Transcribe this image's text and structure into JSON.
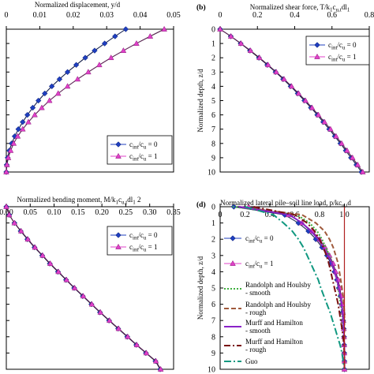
{
  "chart_data": [
    {
      "type": "line",
      "title": "Normalized displacement, y/d",
      "xlim": [
        0,
        0.05
      ],
      "xticks": [
        "0",
        "0.01",
        "0.02",
        "0.03",
        "0.04",
        "0.05"
      ],
      "ylim": [
        0,
        10
      ],
      "grid": false,
      "legend": "bottom-right",
      "series": [
        {
          "name": "c_int/c_u = 0",
          "color": "#1f3fbf",
          "marker": "diamond",
          "x": [
            0.0357,
            0.0325,
            0.0294,
            0.0264,
            0.0236,
            0.0209,
            0.0183,
            0.0159,
            0.0136,
            0.0115,
            0.0096,
            0.0079,
            0.0063,
            0.0049,
            0.0036,
            0.0025,
            0.0016,
            0.0009,
            0.0004,
            0.0001,
            0.0
          ],
          "y": [
            0,
            0.5,
            1,
            1.5,
            2,
            2.5,
            3,
            3.5,
            4,
            4.5,
            5,
            5.5,
            6,
            6.5,
            7,
            7.5,
            8,
            8.5,
            9,
            9.5,
            10
          ]
        },
        {
          "name": "c_int/c_u = 1",
          "color": "#e040c8",
          "marker": "triangle",
          "x": [
            0.0472,
            0.043,
            0.0389,
            0.035,
            0.0313,
            0.0278,
            0.0245,
            0.0213,
            0.0183,
            0.0155,
            0.0129,
            0.0106,
            0.0085,
            0.0066,
            0.0049,
            0.0034,
            0.0022,
            0.0013,
            0.0006,
            0.0002,
            0.0
          ],
          "y": [
            0,
            0.5,
            1,
            1.5,
            2,
            2.5,
            3,
            3.5,
            4,
            4.5,
            5,
            5.5,
            6,
            6.5,
            7,
            7.5,
            8,
            8.5,
            9,
            9.5,
            10
          ]
        }
      ]
    },
    {
      "panel": "(b)",
      "type": "line",
      "title": "Normalized shear force, T/k1cu,tdl1",
      "xlim": [
        0,
        0.8
      ],
      "xticks": [
        "0",
        "0.2",
        "0.4",
        "0.6",
        "0.8"
      ],
      "ylim": [
        0,
        10
      ],
      "yticks": [
        "0",
        "1",
        "2",
        "3",
        "4",
        "5",
        "6",
        "7",
        "8",
        "9",
        "10"
      ],
      "ylabel": "Normalized depth, z/d",
      "grid": false,
      "legend": "top-right",
      "series": [
        {
          "name": "c_int/c_u = 0",
          "color": "#1f3fbf",
          "marker": "diamond",
          "x": [
            0.0,
            0.057,
            0.11,
            0.16,
            0.208,
            0.253,
            0.297,
            0.338,
            0.378,
            0.416,
            0.452,
            0.487,
            0.521,
            0.553,
            0.585,
            0.615,
            0.645,
            0.674,
            0.702,
            0.731,
            0.758
          ],
          "y": [
            0,
            0.5,
            1,
            1.5,
            2,
            2.5,
            3,
            3.5,
            4,
            4.5,
            5,
            5.5,
            6,
            6.5,
            7,
            7.5,
            8,
            8.5,
            9,
            9.5,
            10
          ]
        },
        {
          "name": "c_int/c_u = 1",
          "color": "#e040c8",
          "marker": "triangle",
          "x": [
            0.0,
            0.058,
            0.112,
            0.163,
            0.211,
            0.257,
            0.301,
            0.343,
            0.383,
            0.421,
            0.458,
            0.493,
            0.527,
            0.56,
            0.592,
            0.622,
            0.652,
            0.681,
            0.71,
            0.738,
            0.765
          ],
          "y": [
            0,
            0.5,
            1,
            1.5,
            2,
            2.5,
            3,
            3.5,
            4,
            4.5,
            5,
            5.5,
            6,
            6.5,
            7,
            7.5,
            8,
            8.5,
            9,
            9.5,
            10
          ]
        }
      ]
    },
    {
      "type": "line",
      "title": "Normalized bending moment, M/k1cu,tdl1 2",
      "xlim": [
        0,
        0.35
      ],
      "xticks": [
        "0.00",
        "0.05",
        "0.10",
        "0.15",
        "0.20",
        "0.25",
        "0.30",
        "0.35"
      ],
      "ylim": [
        0,
        10
      ],
      "grid": false,
      "legend": "top-right",
      "series": [
        {
          "name": "c_int/c_u = 0",
          "color": "#1f3fbf",
          "marker": "diamond",
          "x": [
            0.0,
            0.006,
            0.017,
            0.03,
            0.044,
            0.059,
            0.075,
            0.091,
            0.108,
            0.125,
            0.142,
            0.16,
            0.178,
            0.196,
            0.215,
            0.234,
            0.253,
            0.272,
            0.292,
            0.312,
            0.322
          ],
          "y": [
            0,
            0.5,
            1,
            1.5,
            2,
            2.5,
            3,
            3.5,
            4,
            4.5,
            5,
            5.5,
            6,
            6.5,
            7,
            7.5,
            8,
            8.5,
            9,
            9.5,
            10
          ]
        },
        {
          "name": "c_int/c_u = 1",
          "color": "#e040c8",
          "marker": "triangle",
          "x": [
            0.0,
            0.006,
            0.017,
            0.031,
            0.045,
            0.06,
            0.076,
            0.092,
            0.109,
            0.126,
            0.143,
            0.161,
            0.179,
            0.197,
            0.216,
            0.235,
            0.254,
            0.273,
            0.293,
            0.313,
            0.323
          ],
          "y": [
            0,
            0.5,
            1,
            1.5,
            2,
            2.5,
            3,
            3.5,
            4,
            4.5,
            5,
            5.5,
            6,
            6.5,
            7,
            7.5,
            8,
            8.5,
            9,
            9.5,
            10
          ]
        }
      ]
    },
    {
      "panel": "(d)",
      "type": "line",
      "title": "Normalized lateral pile–soil line load, p/kcu,td",
      "xlim": [
        0,
        1.2
      ],
      "xticks": [
        "0",
        "0.2",
        "0.4",
        "0.6",
        "0.8",
        "1.0"
      ],
      "ylim": [
        0,
        10
      ],
      "yticks": [
        "0",
        "1",
        "2",
        "3",
        "4",
        "5",
        "6",
        "7",
        "8",
        "9",
        "10"
      ],
      "ylabel": "Normalized depth, z/d",
      "grid": false,
      "legend": "top-left",
      "series": [
        {
          "name": "c_int/c_u = 0",
          "color": "#1f3fbf",
          "marker": "diamond",
          "x": [
            0.11,
            0.52,
            0.63,
            0.71,
            0.77,
            0.82,
            0.86,
            0.89,
            0.92,
            0.94,
            0.955,
            0.968,
            0.978,
            0.985,
            0.99,
            0.994,
            0.997,
            0.998,
            0.999,
            1.0,
            1.0
          ],
          "y": [
            0,
            0.5,
            1,
            1.5,
            2,
            2.5,
            3,
            3.5,
            4,
            4.5,
            5,
            5.5,
            6,
            6.5,
            7,
            7.5,
            8,
            8.5,
            9,
            9.5,
            10
          ]
        },
        {
          "name": "c_int/c_u = 1",
          "color": "#e040c8",
          "marker": "triangle",
          "x": [
            0.23,
            0.55,
            0.66,
            0.74,
            0.8,
            0.845,
            0.88,
            0.91,
            0.93,
            0.95,
            0.963,
            0.974,
            0.982,
            0.988,
            0.992,
            0.995,
            0.997,
            0.998,
            0.999,
            1.0,
            1.0
          ],
          "y": [
            0,
            0.5,
            1,
            1.5,
            2,
            2.5,
            3,
            3.5,
            4,
            4.5,
            5,
            5.5,
            6,
            6.5,
            7,
            7.5,
            8,
            8.5,
            9,
            9.5,
            10
          ]
        },
        {
          "name": "Randolph and Houlsby - smooth",
          "color": "#40b040",
          "dash": "2,2",
          "x": [
            0.1,
            0.62,
            0.72,
            0.78,
            0.82,
            0.85,
            0.88,
            0.9,
            0.92,
            0.94,
            0.95,
            0.96,
            0.97,
            0.98,
            0.985,
            0.99,
            0.995,
            0.998,
            1.0,
            1.0,
            1.0
          ],
          "y": [
            0,
            0.5,
            1,
            1.5,
            2,
            2.5,
            3,
            3.5,
            4,
            4.5,
            5,
            5.5,
            6,
            6.5,
            7,
            7.5,
            8,
            8.5,
            9,
            9.5,
            10
          ]
        },
        {
          "name": "Randolph and Houlsby - rough",
          "color": "#a05a3c",
          "dash": "6,3",
          "x": [
            0.15,
            0.66,
            0.77,
            0.84,
            0.88,
            0.91,
            0.93,
            0.95,
            0.96,
            0.97,
            0.98,
            0.99,
            0.995,
            1.0,
            1.0,
            1.0,
            1.0,
            1.0,
            1.0,
            1.0,
            1.0
          ],
          "y": [
            0,
            0.5,
            1,
            1.5,
            2,
            2.5,
            3,
            3.5,
            4,
            4.5,
            5,
            5.5,
            6,
            6.5,
            7,
            7.5,
            8,
            8.5,
            9,
            9.5,
            10
          ]
        },
        {
          "name": "Murff and Hamilton - smooth",
          "color": "#8a22c8",
          "dash": "",
          "x": [
            0.15,
            0.56,
            0.66,
            0.73,
            0.79,
            0.83,
            0.87,
            0.9,
            0.92,
            0.94,
            0.955,
            0.967,
            0.977,
            0.985,
            0.99,
            0.994,
            0.997,
            0.999,
            1.0,
            1.0,
            1.0
          ],
          "y": [
            0,
            0.5,
            1,
            1.5,
            2,
            2.5,
            3,
            3.5,
            4,
            4.5,
            5,
            5.5,
            6,
            6.5,
            7,
            7.5,
            8,
            8.5,
            9,
            9.5,
            10
          ]
        },
        {
          "name": "Murff and Hamilton - rough",
          "color": "#7a1010",
          "dash": "8,3,2,3",
          "x": [
            0.27,
            0.6,
            0.7,
            0.76,
            0.8,
            0.83,
            0.855,
            0.875,
            0.89,
            0.905,
            0.92,
            0.935,
            0.95,
            0.96,
            0.97,
            0.98,
            0.99,
            0.995,
            1.0,
            1.0,
            1.0
          ],
          "y": [
            0,
            0.5,
            1,
            1.5,
            2,
            2.5,
            3,
            3.5,
            4,
            4.5,
            5,
            5.5,
            6,
            6.5,
            7,
            7.5,
            8,
            8.5,
            9,
            9.5,
            10
          ]
        },
        {
          "name": "Guo",
          "color": "#109880",
          "dash": "9,3,2,3",
          "x": [
            0.2,
            0.43,
            0.51,
            0.58,
            0.63,
            0.67,
            0.7,
            0.73,
            0.76,
            0.79,
            0.81,
            0.835,
            0.86,
            0.885,
            0.905,
            0.925,
            0.945,
            0.965,
            0.98,
            0.99,
            1.0
          ],
          "y": [
            0,
            0.5,
            1,
            1.5,
            2,
            2.5,
            3,
            3.5,
            4,
            4.5,
            5,
            5.5,
            6,
            6.5,
            7,
            7.5,
            8,
            8.5,
            9,
            9.5,
            10
          ]
        },
        {
          "name": "",
          "color": "#b02020",
          "dash": "",
          "vertical": 1.0,
          "x": [
            1.0,
            1.0
          ],
          "y": [
            0,
            10
          ]
        }
      ]
    }
  ]
}
